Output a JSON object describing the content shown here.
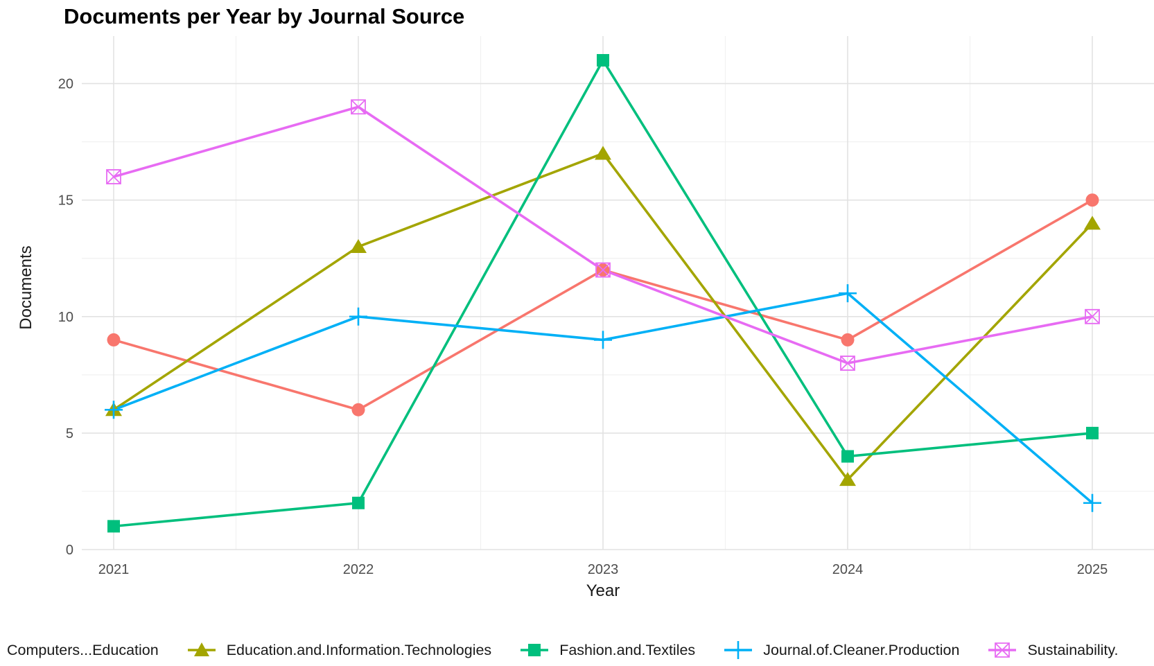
{
  "title": "Documents per Year by Journal Source",
  "axes": {
    "x_label": "Year",
    "y_label": "Documents",
    "x_ticks": [
      "2021",
      "2022",
      "2023",
      "2024",
      "2025"
    ],
    "y_ticks": [
      "0",
      "5",
      "10",
      "15",
      "20"
    ]
  },
  "colors": {
    "grid_major": "#e2e2e2",
    "grid_minor": "#f1f1f1",
    "tick_text": "#4d4d4d",
    "axis_title_text": "#1a1a1a",
    "legend_text": "#191919"
  },
  "chart_data": {
    "type": "line",
    "title": "Documents per Year by Journal Source",
    "xlabel": "Year",
    "ylabel": "Documents",
    "x": [
      2021,
      2022,
      2023,
      2024,
      2025
    ],
    "ylim": [
      0,
      21
    ],
    "y_major_ticks": [
      0,
      5,
      10,
      15,
      20
    ],
    "y_minor_ticks": [
      2.5,
      7.5,
      12.5,
      17.5
    ],
    "grid": true,
    "legend_position": "bottom",
    "series": [
      {
        "name": "Computers...Education",
        "color": "#F8766D",
        "marker": "circle",
        "values": [
          9,
          6,
          12,
          9,
          15
        ],
        "legend_key_visible": false
      },
      {
        "name": "Education.and.Information.Technologies",
        "color": "#A3A500",
        "marker": "triangle",
        "values": [
          6,
          13,
          17,
          3,
          14
        ],
        "legend_key_visible": true
      },
      {
        "name": "Fashion.and.Textiles",
        "color": "#00BF7D",
        "marker": "square",
        "values": [
          1,
          2,
          21,
          4,
          5
        ],
        "legend_key_visible": true
      },
      {
        "name": "Journal.of.Cleaner.Production",
        "color": "#00B0F6",
        "marker": "plus",
        "values": [
          6,
          10,
          9,
          11,
          2
        ],
        "legend_key_visible": true
      },
      {
        "name": "Sustainability.",
        "color": "#E76BF3",
        "marker": "square-x",
        "values": [
          16,
          19,
          12,
          8,
          10
        ],
        "legend_key_visible": true
      }
    ]
  }
}
